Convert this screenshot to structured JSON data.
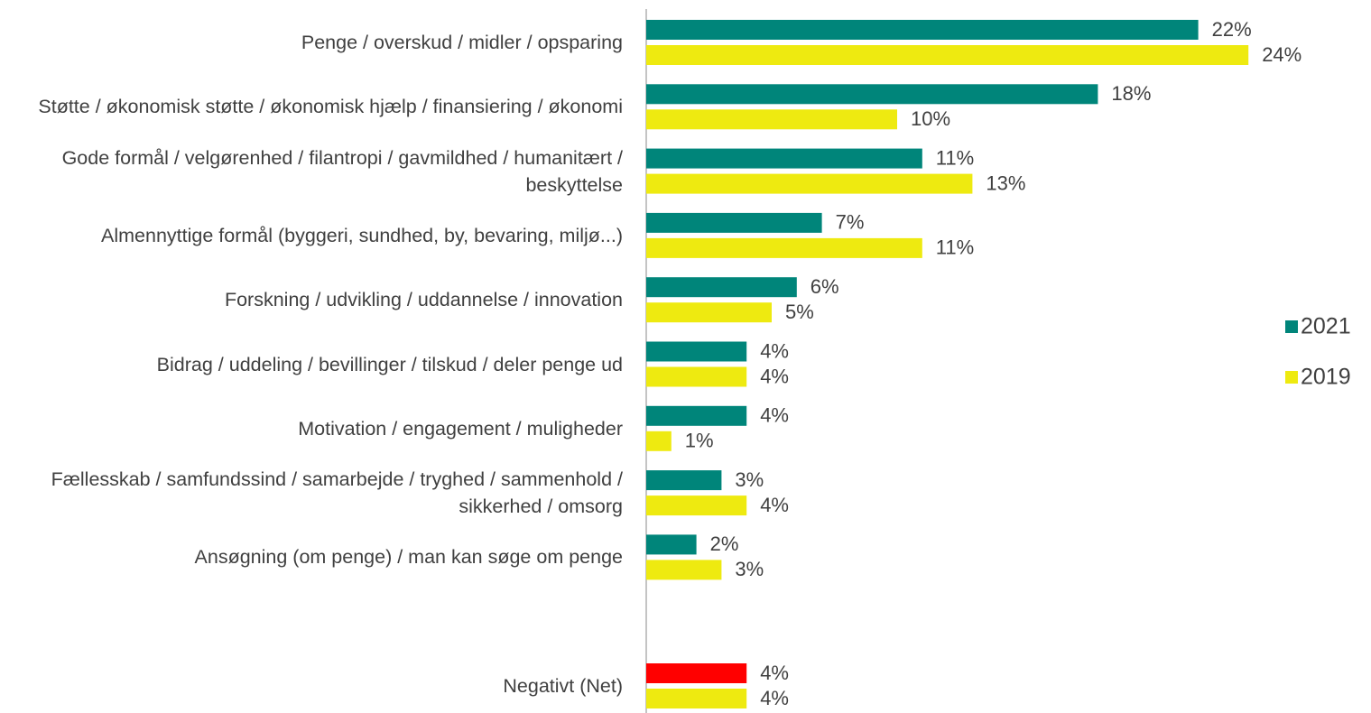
{
  "chart_data": {
    "type": "bar",
    "orientation": "horizontal",
    "categories": [
      "Penge / overskud / midler / opsparing",
      "Støtte / økonomisk støtte / økonomisk hjælp / finansiering / økonomi",
      "Gode formål / velgørenhed / filantropi / gavmildhed / humanitært / beskyttelse",
      "Almennyttige formål (byggeri, sundhed, by, bevaring, miljø...)",
      "Forskning / udvikling / uddannelse / innovation",
      "Bidrag / uddeling / bevillinger / tilskud / deler penge ud",
      "Motivation / engagement / muligheder",
      "Fællesskab / samfundssind / samarbejde / tryghed / sammenhold / sikkerhed / omsorg",
      "Ansøgning (om penge) / man kan søge om penge",
      null,
      "Negativt (Net)"
    ],
    "series": [
      {
        "name": "2021",
        "color": "#00857a",
        "colors": [
          "#00857a",
          "#00857a",
          "#00857a",
          "#00857a",
          "#00857a",
          "#00857a",
          "#00857a",
          "#00857a",
          "#00857a",
          null,
          "#ff0000"
        ],
        "values": [
          22,
          18,
          11,
          7,
          6,
          4,
          4,
          3,
          2,
          null,
          4
        ],
        "value_labels": [
          "22%",
          "18%",
          "11%",
          "7%",
          "6%",
          "4%",
          "4%",
          "3%",
          "2%",
          null,
          "4%"
        ]
      },
      {
        "name": "2019",
        "color": "#eeea10",
        "values": [
          24,
          10,
          13,
          11,
          5,
          4,
          1,
          4,
          3,
          null,
          4
        ],
        "value_labels": [
          "24%",
          "10%",
          "13%",
          "11%",
          "5%",
          "4%",
          "1%",
          "4%",
          "3%",
          null,
          "4%"
        ]
      }
    ],
    "legend": "right"
  }
}
